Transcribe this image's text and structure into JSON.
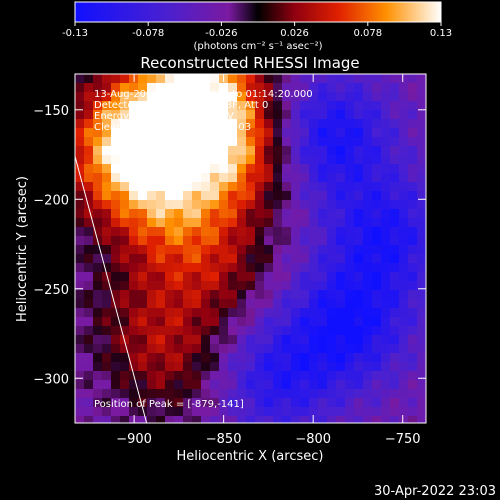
{
  "colorbar": {
    "ticks": [
      "-0.13",
      "-0.078",
      "-0.026",
      "0.026",
      "0.078",
      "0.13"
    ],
    "unit_label": "(photons cm⁻² s⁻¹ asec⁻²)",
    "range": [
      -0.13,
      0.13
    ]
  },
  "chart_data": {
    "type": "heatmap",
    "title": "Reconstructed RHESSI Image",
    "xlabel": "Heliocentric X (arcsec)",
    "ylabel": "Heliocentric Y (arcsec)",
    "xlim": [
      -933,
      -737
    ],
    "ylim": [
      -325,
      -130
    ],
    "x_ticks": [
      {
        "value": -900,
        "label": "−900"
      },
      {
        "value": -850,
        "label": "−850"
      },
      {
        "value": -800,
        "label": "−800"
      },
      {
        "value": -750,
        "label": "−750"
      }
    ],
    "y_ticks": [
      {
        "value": -150,
        "label": "−150"
      },
      {
        "value": -200,
        "label": "−200"
      },
      {
        "value": -250,
        "label": "−250"
      },
      {
        "value": -300,
        "label": "−300"
      }
    ],
    "annotations": [
      "13-Aug-2004 01:13:24.000 to 01:14:20.000",
      "Detectors: 3F 4F 5F 6F 7F 8F, Att 0",
      "Energy Range: 3.0 - 6.0 keV",
      "Clean    Total counts: 9.77e+03",
      "Position of Peak = [-879,-141]"
    ],
    "peak": {
      "x": -879,
      "y": -141
    },
    "limb_line": [
      {
        "x": -933,
        "y": -176
      },
      {
        "x": -893,
        "y": -325
      }
    ],
    "hot_regions": [
      {
        "x": -895,
        "y": -160,
        "value": 0.11
      },
      {
        "x": -862,
        "y": -140,
        "value": 0.13
      },
      {
        "x": -845,
        "y": -175,
        "value": 0.1
      },
      {
        "x": -880,
        "y": -205,
        "value": 0.08
      },
      {
        "x": -910,
        "y": -180,
        "value": 0.07
      },
      {
        "x": -855,
        "y": -240,
        "value": 0.05
      },
      {
        "x": -880,
        "y": -290,
        "value": 0.05
      },
      {
        "x": -900,
        "y": -260,
        "value": 0.03
      }
    ],
    "cold_regions": [
      {
        "x": -790,
        "y": -165,
        "value": -0.09
      },
      {
        "x": -760,
        "y": -220,
        "value": -0.08
      },
      {
        "x": -820,
        "y": -300,
        "value": -0.07
      },
      {
        "x": -780,
        "y": -270,
        "value": -0.09
      }
    ]
  },
  "footer": {
    "timestamp": "30-Apr-2022 23:03"
  }
}
